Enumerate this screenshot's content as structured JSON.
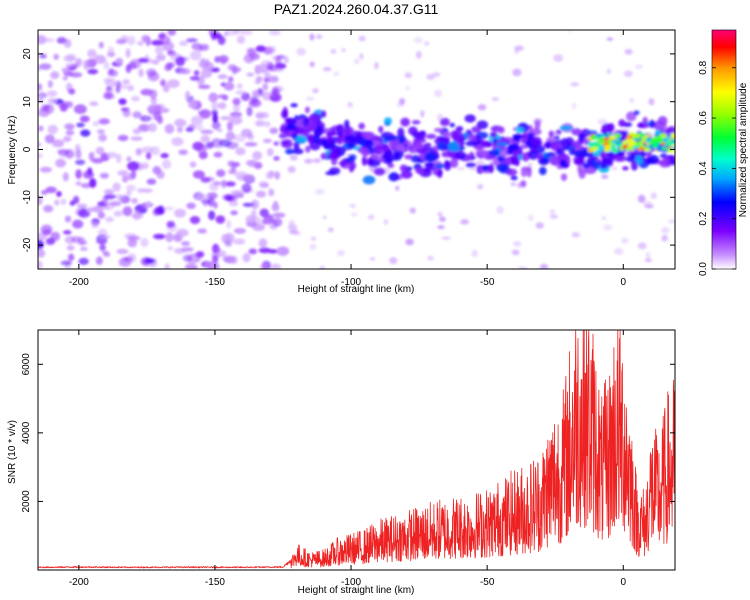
{
  "figure": {
    "title": "PAZ1.2024.260.04.37.G11"
  },
  "chart_data": [
    {
      "type": "heatmap",
      "xlabel": "Height of straight line (km)",
      "ylabel": "Frequency (Hz)",
      "xlim": [
        -215,
        19
      ],
      "ylim": [
        -25,
        25
      ],
      "xticks": [
        -200,
        -150,
        -100,
        -50,
        0
      ],
      "yticks": [
        -20,
        -10,
        0,
        10,
        20
      ],
      "colorbar": {
        "label": "Normalized spectral amplitude",
        "range": [
          0,
          0.95
        ],
        "ticks": [
          0,
          0.2,
          0.4,
          0.6,
          0.8
        ],
        "colormap": [
          "#ffffff",
          "#b36bff",
          "#6a00ff",
          "#1a00ff",
          "#0066ff",
          "#00e5ff",
          "#00ff55",
          "#aaff00",
          "#ffff00",
          "#ff8800",
          "#ff0000",
          "#ff0066"
        ]
      },
      "regions": [
        {
          "name": "noise",
          "x_range": [
            -215,
            -125
          ],
          "y_range": [
            -25,
            25
          ],
          "amplitude": [
            0.0,
            0.1
          ]
        },
        {
          "name": "signal band",
          "x_range": [
            -125,
            19
          ],
          "center_hz": [
            5,
            0,
            0,
            0,
            0,
            2
          ],
          "center_x": [
            -125,
            -100,
            -60,
            -30,
            -10,
            19
          ],
          "halfwidth_hz": 6,
          "amplitude": [
            0.1,
            0.3
          ]
        },
        {
          "name": "strong tail",
          "x_range": [
            -12,
            19
          ],
          "center_hz": 1.5,
          "amplitude": [
            0.5,
            0.95
          ]
        }
      ],
      "grid": false
    },
    {
      "type": "line",
      "xlabel": "Height of straight line (km)",
      "ylabel": "SNR (10 * v/v)",
      "xlim": [
        -215,
        19
      ],
      "ylim": [
        0,
        7000
      ],
      "xticks": [
        -200,
        -150,
        -100,
        -50,
        0
      ],
      "yticks": [
        2000,
        4000,
        6000
      ],
      "series": [
        {
          "color": "#ee2222",
          "x": [
            -215,
            -200,
            -180,
            -160,
            -140,
            -125,
            -122,
            -120,
            -115,
            -110,
            -105,
            -100,
            -95,
            -90,
            -85,
            -80,
            -75,
            -70,
            -65,
            -60,
            -55,
            -50,
            -45,
            -40,
            -35,
            -30,
            -28,
            -25,
            -22,
            -20,
            -18,
            -15,
            -13,
            -10,
            -8,
            -5,
            -3,
            0,
            3,
            5,
            8,
            10,
            13,
            15,
            17,
            19
          ],
          "values": [
            80,
            90,
            80,
            85,
            80,
            90,
            300,
            600,
            400,
            450,
            700,
            800,
            900,
            1100,
            1200,
            1300,
            1400,
            1500,
            1600,
            1650,
            1700,
            1800,
            2000,
            2200,
            2400,
            2700,
            3200,
            3700,
            4000,
            4800,
            6000,
            6300,
            6000,
            5000,
            3800,
            4500,
            5700,
            5500,
            3500,
            2000,
            1800,
            3200,
            3000,
            3500,
            4100,
            4300
          ]
        }
      ],
      "grid": false
    }
  ]
}
